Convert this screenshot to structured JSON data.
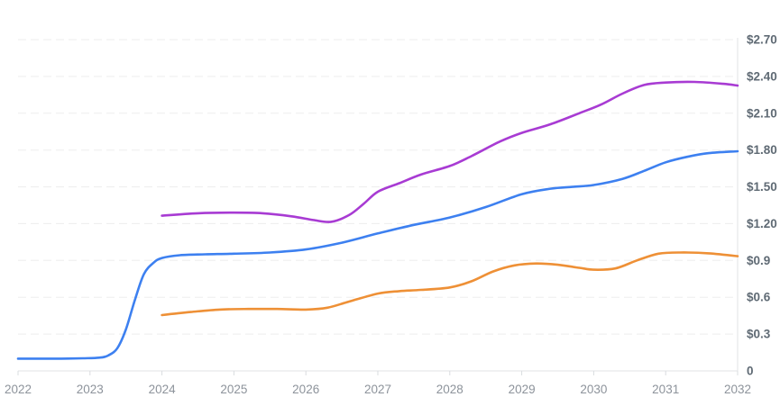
{
  "chart": {
    "background_color": "#ffffff",
    "grid_color": "#ededed",
    "axis_color": "#e0e3e6",
    "tick_color": "#d9dcdf",
    "y_label_color": "#5f6a74",
    "x_label_color": "#8d939b"
  },
  "chart_data": {
    "type": "line",
    "title": "",
    "xlabel": "",
    "ylabel": "",
    "legend": "none",
    "grid": "horizontal-dashed",
    "x_range": [
      2022,
      2032
    ],
    "x_axis": {
      "ticks": [
        "2022",
        "2023",
        "2024",
        "2025",
        "2026",
        "2027",
        "2028",
        "2029",
        "2030",
        "2031",
        "2032"
      ],
      "tick_years": [
        2022,
        2023,
        2024,
        2025,
        2026,
        2027,
        2028,
        2029,
        2030,
        2031,
        2032
      ]
    },
    "y_axis": {
      "side": "right",
      "range": [
        0,
        2.7
      ],
      "currency_prefix": "$",
      "ticks": [
        {
          "label": "0",
          "value": 0.0
        },
        {
          "label": "$0.3",
          "value": 0.3
        },
        {
          "label": "$0.6",
          "value": 0.6
        },
        {
          "label": "$0.9",
          "value": 0.9
        },
        {
          "label": "$1.20",
          "value": 1.2
        },
        {
          "label": "$1.50",
          "value": 1.5
        },
        {
          "label": "$1.80",
          "value": 1.8
        },
        {
          "label": "$2.10",
          "value": 2.1
        },
        {
          "label": "$2.40",
          "value": 2.4
        },
        {
          "label": "$2.70",
          "value": 2.7
        }
      ]
    },
    "series": [
      {
        "name": "blue-series",
        "color": "#3d80f0",
        "points": [
          [
            2022.0,
            0.1
          ],
          [
            2022.3,
            0.1
          ],
          [
            2022.6,
            0.1
          ],
          [
            2022.9,
            0.103
          ],
          [
            2023.13,
            0.108
          ],
          [
            2023.25,
            0.125
          ],
          [
            2023.38,
            0.185
          ],
          [
            2023.5,
            0.34
          ],
          [
            2023.63,
            0.59
          ],
          [
            2023.75,
            0.79
          ],
          [
            2023.88,
            0.88
          ],
          [
            2024.0,
            0.92
          ],
          [
            2024.25,
            0.943
          ],
          [
            2024.6,
            0.95
          ],
          [
            2025.0,
            0.955
          ],
          [
            2025.5,
            0.965
          ],
          [
            2026.0,
            0.99
          ],
          [
            2026.5,
            1.045
          ],
          [
            2027.0,
            1.12
          ],
          [
            2027.5,
            1.19
          ],
          [
            2028.0,
            1.25
          ],
          [
            2028.5,
            1.335
          ],
          [
            2029.0,
            1.44
          ],
          [
            2029.4,
            1.485
          ],
          [
            2029.7,
            1.5
          ],
          [
            2030.0,
            1.515
          ],
          [
            2030.4,
            1.565
          ],
          [
            2030.7,
            1.63
          ],
          [
            2031.0,
            1.7
          ],
          [
            2031.3,
            1.745
          ],
          [
            2031.6,
            1.775
          ],
          [
            2032.0,
            1.79
          ]
        ]
      },
      {
        "name": "orange-series",
        "color": "#ee9036",
        "points": [
          [
            2024.0,
            0.455
          ],
          [
            2024.4,
            0.48
          ],
          [
            2024.8,
            0.5
          ],
          [
            2025.2,
            0.505
          ],
          [
            2025.6,
            0.505
          ],
          [
            2026.0,
            0.5
          ],
          [
            2026.3,
            0.515
          ],
          [
            2026.6,
            0.565
          ],
          [
            2027.0,
            0.63
          ],
          [
            2027.3,
            0.65
          ],
          [
            2027.6,
            0.66
          ],
          [
            2028.0,
            0.68
          ],
          [
            2028.3,
            0.73
          ],
          [
            2028.6,
            0.81
          ],
          [
            2028.9,
            0.86
          ],
          [
            2029.2,
            0.875
          ],
          [
            2029.5,
            0.865
          ],
          [
            2029.8,
            0.84
          ],
          [
            2030.0,
            0.825
          ],
          [
            2030.3,
            0.835
          ],
          [
            2030.6,
            0.9
          ],
          [
            2030.9,
            0.955
          ],
          [
            2031.2,
            0.965
          ],
          [
            2031.6,
            0.958
          ],
          [
            2032.0,
            0.935
          ]
        ]
      },
      {
        "name": "purple-series",
        "color": "#a83bd3",
        "points": [
          [
            2024.0,
            1.265
          ],
          [
            2024.5,
            1.285
          ],
          [
            2025.0,
            1.29
          ],
          [
            2025.4,
            1.285
          ],
          [
            2025.8,
            1.26
          ],
          [
            2026.1,
            1.23
          ],
          [
            2026.35,
            1.215
          ],
          [
            2026.6,
            1.27
          ],
          [
            2026.8,
            1.36
          ],
          [
            2027.0,
            1.46
          ],
          [
            2027.3,
            1.53
          ],
          [
            2027.6,
            1.6
          ],
          [
            2028.0,
            1.67
          ],
          [
            2028.3,
            1.75
          ],
          [
            2028.7,
            1.87
          ],
          [
            2029.0,
            1.94
          ],
          [
            2029.4,
            2.01
          ],
          [
            2029.8,
            2.1
          ],
          [
            2030.1,
            2.17
          ],
          [
            2030.4,
            2.26
          ],
          [
            2030.7,
            2.33
          ],
          [
            2031.0,
            2.35
          ],
          [
            2031.4,
            2.355
          ],
          [
            2031.8,
            2.34
          ],
          [
            2032.0,
            2.325
          ]
        ]
      }
    ]
  }
}
